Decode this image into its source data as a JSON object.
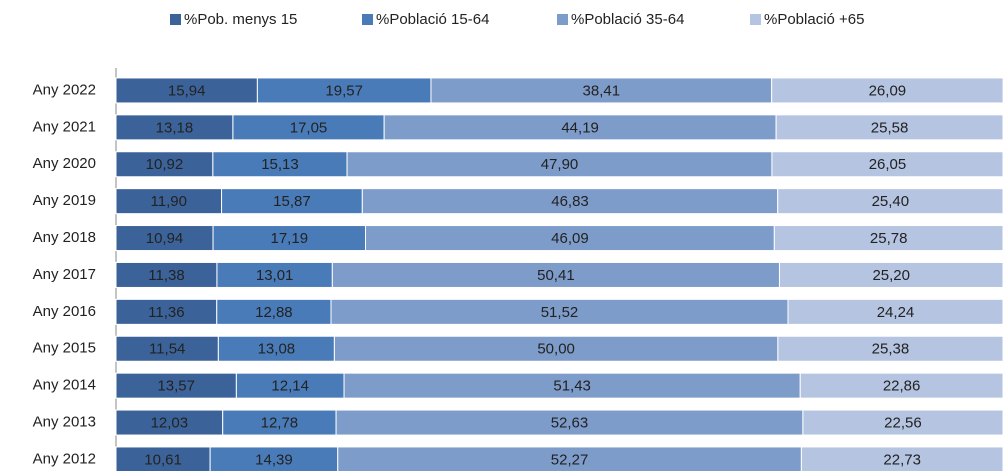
{
  "chart_data": {
    "type": "stacked-barh",
    "categories": [
      "Any 2022",
      "Any 2021",
      "Any 2020",
      "Any 2019",
      "Any 2018",
      "Any 2017",
      "Any 2016",
      "Any 2015",
      "Any 2014",
      "Any 2013",
      "Any 2012"
    ],
    "xlim": [
      0,
      100
    ],
    "series": [
      {
        "name": "%Pob. menys 15",
        "color": "#3c6399",
        "values": [
          15.94,
          13.18,
          10.92,
          11.9,
          10.94,
          11.38,
          11.36,
          11.54,
          13.57,
          12.03,
          10.61
        ],
        "value_labels": [
          "15,94",
          "13,18",
          "10,92",
          "11,90",
          "10,94",
          "11,38",
          "11,36",
          "11,54",
          "13,57",
          "12,03",
          "10,61"
        ]
      },
      {
        "name": "%Població 15-64",
        "color": "#4a7bb9",
        "values": [
          19.57,
          17.05,
          15.13,
          15.87,
          17.19,
          13.01,
          12.88,
          13.08,
          12.14,
          12.78,
          14.39
        ],
        "value_labels": [
          "19,57",
          "17,05",
          "15,13",
          "15,87",
          "17,19",
          "13,01",
          "12,88",
          "13,08",
          "12,14",
          "12,78",
          "14,39"
        ]
      },
      {
        "name": "%Població 35-64",
        "color": "#7e9cca",
        "values": [
          38.41,
          44.19,
          47.9,
          46.83,
          46.09,
          50.41,
          51.52,
          50.0,
          51.43,
          52.63,
          52.27
        ],
        "value_labels": [
          "38,41",
          "44,19",
          "47,90",
          "46,83",
          "46,09",
          "50,41",
          "51,52",
          "50,00",
          "51,43",
          "52,63",
          "52,27"
        ]
      },
      {
        "name": "%Població +65",
        "color": "#b5c4e1",
        "values": [
          26.09,
          25.58,
          26.05,
          25.4,
          25.78,
          25.2,
          24.24,
          25.38,
          22.86,
          22.56,
          22.73
        ],
        "value_labels": [
          "26,09",
          "25,58",
          "26,05",
          "25,40",
          "25,78",
          "25,20",
          "24,24",
          "25,38",
          "22,86",
          "22,56",
          "22,73"
        ]
      }
    ],
    "legend": "top"
  }
}
